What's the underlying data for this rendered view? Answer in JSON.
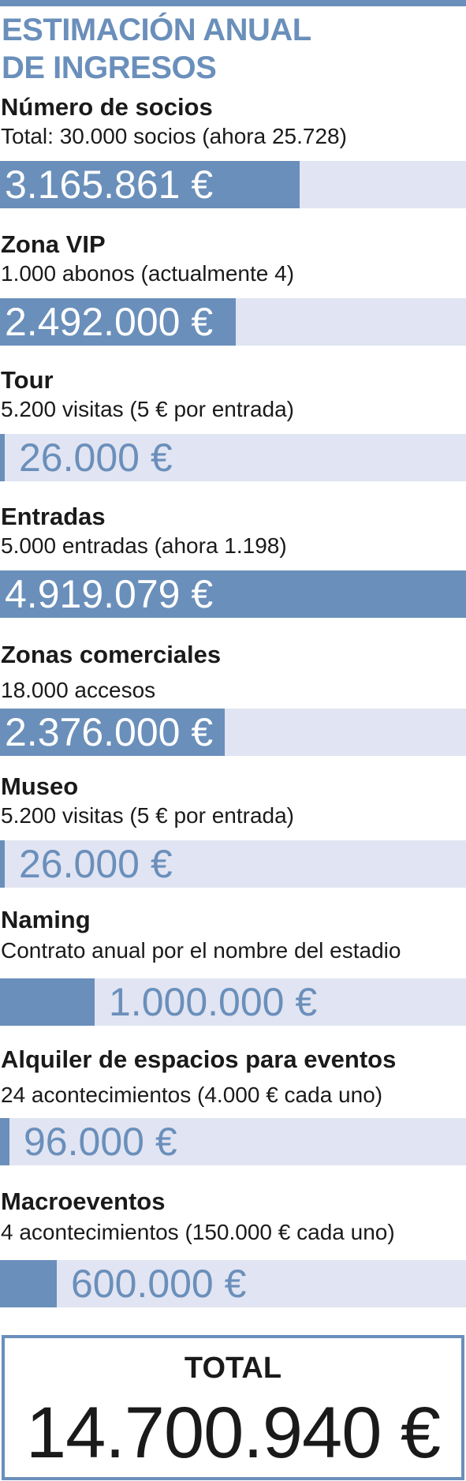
{
  "header": {
    "title_line1": "ESTIMACIÓN ANUAL",
    "title_line2": "DE INGRESOS"
  },
  "colors": {
    "accent": "#6a8fbb",
    "track": "#e1e4f2",
    "text": "#1a1a1a"
  },
  "chart_data": {
    "type": "bar",
    "title": "ESTIMACIÓN ANUAL DE INGRESOS",
    "unit": "€",
    "categories": [
      "Número de socios",
      "Zona VIP",
      "Tour",
      "Entradas",
      "Zonas comerciales",
      "Museo",
      "Naming",
      "Alquiler de espacios para eventos",
      "Macroeventos"
    ],
    "descriptions": [
      "Total: 30.000 socios (ahora 25.728)",
      "1.000 abonos (actualmente 4)",
      "5.200 visitas (5 € por entrada)",
      "5.000 entradas (ahora 1.198)",
      "18.000 accesos",
      "5.200 visitas (5 € por entrada)",
      "Contrato anual por el nombre del estadio",
      "24 acontecimientos (4.000 € cada uno)",
      "4 acontecimientos (150.000 € cada uno)"
    ],
    "values": [
      3165861,
      2492000,
      26000,
      4919079,
      2376000,
      26000,
      1000000,
      96000,
      600000
    ],
    "value_labels": [
      "3.165.861 €",
      "2.492.000 €",
      "26.000 €",
      "4.919.079 €",
      "2.376.000 €",
      "26.000 €",
      "1.000.000 €",
      "96.000 €",
      "600.000 €"
    ],
    "xlim": [
      0,
      4919079
    ]
  },
  "total": {
    "label": "TOTAL",
    "value": "14.700.940 €"
  }
}
